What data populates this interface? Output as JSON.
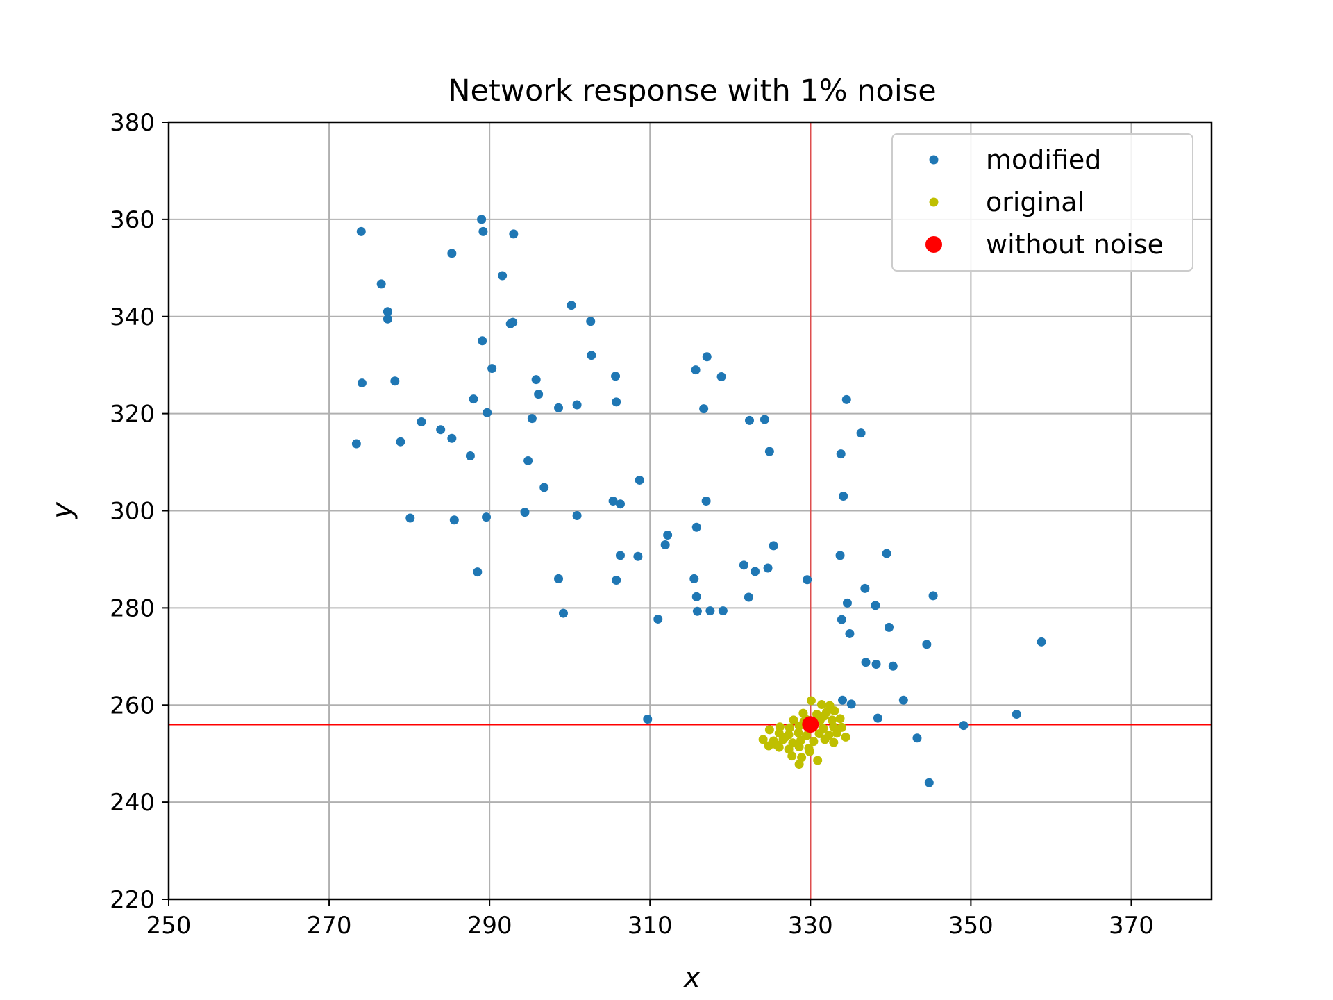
{
  "chart_data": {
    "type": "scatter",
    "title": "Network response with 1% noise",
    "xlabel": "x",
    "ylabel": "y",
    "xlim": [
      250,
      380
    ],
    "ylim": [
      220,
      380
    ],
    "xticks": [
      250,
      270,
      290,
      310,
      330,
      350,
      370
    ],
    "yticks": [
      220,
      240,
      260,
      280,
      300,
      320,
      340,
      360,
      380
    ],
    "grid": true,
    "legend_position": "top-right",
    "reference_lines": {
      "vertical_x": 330,
      "horizontal_y": 256,
      "color": "#ff0000"
    },
    "series": [
      {
        "name": "modified",
        "color": "#1f77b4",
        "marker": "small-dot",
        "points": [
          [
            274,
            357.5
          ],
          [
            289,
            360
          ],
          [
            289.2,
            357.5
          ],
          [
            293,
            357
          ],
          [
            285.3,
            353
          ],
          [
            276.5,
            346.7
          ],
          [
            291.6,
            348.4
          ],
          [
            277.3,
            341
          ],
          [
            277.3,
            339.5
          ],
          [
            292.6,
            338.5
          ],
          [
            292.9,
            338.8
          ],
          [
            300.2,
            342.3
          ],
          [
            302.6,
            339
          ],
          [
            289.1,
            335
          ],
          [
            302.7,
            332
          ],
          [
            274.1,
            326.3
          ],
          [
            278.2,
            326.7
          ],
          [
            290.3,
            329.3
          ],
          [
            295.8,
            327
          ],
          [
            305.7,
            327.7
          ],
          [
            315.7,
            329
          ],
          [
            317.1,
            331.7
          ],
          [
            318.9,
            327.6
          ],
          [
            288,
            323
          ],
          [
            296.1,
            324
          ],
          [
            305.8,
            322.4
          ],
          [
            289.7,
            320.2
          ],
          [
            298.6,
            321.2
          ],
          [
            300.9,
            321.8
          ],
          [
            316.7,
            321
          ],
          [
            273.4,
            313.8
          ],
          [
            278.9,
            314.2
          ],
          [
            281.5,
            318.3
          ],
          [
            283.9,
            316.7
          ],
          [
            285.3,
            314.9
          ],
          [
            287.6,
            311.3
          ],
          [
            295.3,
            319
          ],
          [
            322.4,
            318.6
          ],
          [
            324.3,
            318.8
          ],
          [
            324.9,
            312.2
          ],
          [
            333.8,
            311.7
          ],
          [
            334.5,
            322.9
          ],
          [
            336.3,
            316
          ],
          [
            294.8,
            310.3
          ],
          [
            308.7,
            306.3
          ],
          [
            296.8,
            304.8
          ],
          [
            305.4,
            302
          ],
          [
            306.3,
            301.4
          ],
          [
            317,
            302
          ],
          [
            334.1,
            303
          ],
          [
            280.1,
            298.5
          ],
          [
            285.6,
            298.1
          ],
          [
            289.6,
            298.7
          ],
          [
            294.4,
            299.7
          ],
          [
            300.9,
            299
          ],
          [
            315.8,
            296.6
          ],
          [
            312.2,
            295
          ],
          [
            311.9,
            293
          ],
          [
            325.4,
            292.8
          ],
          [
            306.3,
            290.8
          ],
          [
            308.5,
            290.6
          ],
          [
            333.7,
            290.8
          ],
          [
            339.5,
            291.2
          ],
          [
            288.5,
            287.4
          ],
          [
            298.6,
            286
          ],
          [
            305.8,
            285.7
          ],
          [
            315.5,
            286
          ],
          [
            321.7,
            288.8
          ],
          [
            323.1,
            287.5
          ],
          [
            324.7,
            288.2
          ],
          [
            329.6,
            285.8
          ],
          [
            336.8,
            284
          ],
          [
            315.8,
            282.3
          ],
          [
            322.3,
            282.2
          ],
          [
            334.6,
            281
          ],
          [
            338.1,
            280.5
          ],
          [
            345.3,
            282.5
          ],
          [
            299.2,
            278.9
          ],
          [
            315.9,
            279.3
          ],
          [
            317.5,
            279.4
          ],
          [
            319.1,
            279.4
          ],
          [
            311,
            277.7
          ],
          [
            333.9,
            277.6
          ],
          [
            334.9,
            274.7
          ],
          [
            339.8,
            276
          ],
          [
            344.5,
            272.5
          ],
          [
            358.8,
            273
          ],
          [
            336.9,
            268.8
          ],
          [
            338.2,
            268.4
          ],
          [
            340.3,
            268
          ],
          [
            334,
            261
          ],
          [
            335.1,
            260.2
          ],
          [
            341.6,
            261
          ],
          [
            309.7,
            257.1
          ],
          [
            338.4,
            257.3
          ],
          [
            349.1,
            255.8
          ],
          [
            355.7,
            258.1
          ],
          [
            343.3,
            253.2
          ],
          [
            344.8,
            244
          ]
        ]
      },
      {
        "name": "original",
        "color": "#bfbf00",
        "marker": "small-dot",
        "points": [
          [
            330.1,
            260.9
          ],
          [
            331.4,
            260.1
          ],
          [
            332.4,
            259.9
          ],
          [
            329.1,
            258.3
          ],
          [
            330.8,
            258.1
          ],
          [
            332,
            258.5
          ],
          [
            333,
            258.8
          ],
          [
            327.9,
            256.9
          ],
          [
            329.5,
            257
          ],
          [
            331.2,
            256.8
          ],
          [
            332.7,
            256.9
          ],
          [
            333.7,
            257.2
          ],
          [
            326.2,
            255.5
          ],
          [
            327.4,
            255.3
          ],
          [
            328.6,
            255.7
          ],
          [
            331.6,
            255.2
          ],
          [
            332.9,
            255.5
          ],
          [
            333.9,
            255.4
          ],
          [
            324.9,
            254.9
          ],
          [
            326.1,
            254.2
          ],
          [
            327.3,
            253.9
          ],
          [
            328.5,
            254.3
          ],
          [
            329.5,
            253.7
          ],
          [
            331.1,
            254.1
          ],
          [
            332.3,
            253.8
          ],
          [
            333.3,
            254.2
          ],
          [
            334.4,
            253.4
          ],
          [
            324.1,
            252.9
          ],
          [
            325.4,
            252.6
          ],
          [
            326.6,
            252.9
          ],
          [
            327.8,
            252.2
          ],
          [
            328.8,
            252.7
          ],
          [
            330.4,
            252.5
          ],
          [
            331.8,
            252.9
          ],
          [
            332.9,
            252.3
          ],
          [
            324.8,
            251.6
          ],
          [
            326.1,
            251.3
          ],
          [
            327.3,
            250.9
          ],
          [
            328.6,
            251.4
          ],
          [
            329.8,
            251.1
          ],
          [
            327.7,
            249.5
          ],
          [
            328.9,
            249.2
          ],
          [
            329.9,
            250.4
          ],
          [
            328.6,
            247.8
          ],
          [
            330.9,
            248.6
          ],
          [
            330.6,
            256.3
          ],
          [
            329.2,
            256.6
          ],
          [
            331.7,
            257.7
          ],
          [
            326.8,
            253.3
          ],
          [
            325.7,
            251.9
          ]
        ]
      },
      {
        "name": "without noise",
        "color": "#ff0000",
        "marker": "large-dot",
        "points": [
          [
            330,
            256
          ]
        ]
      }
    ]
  }
}
